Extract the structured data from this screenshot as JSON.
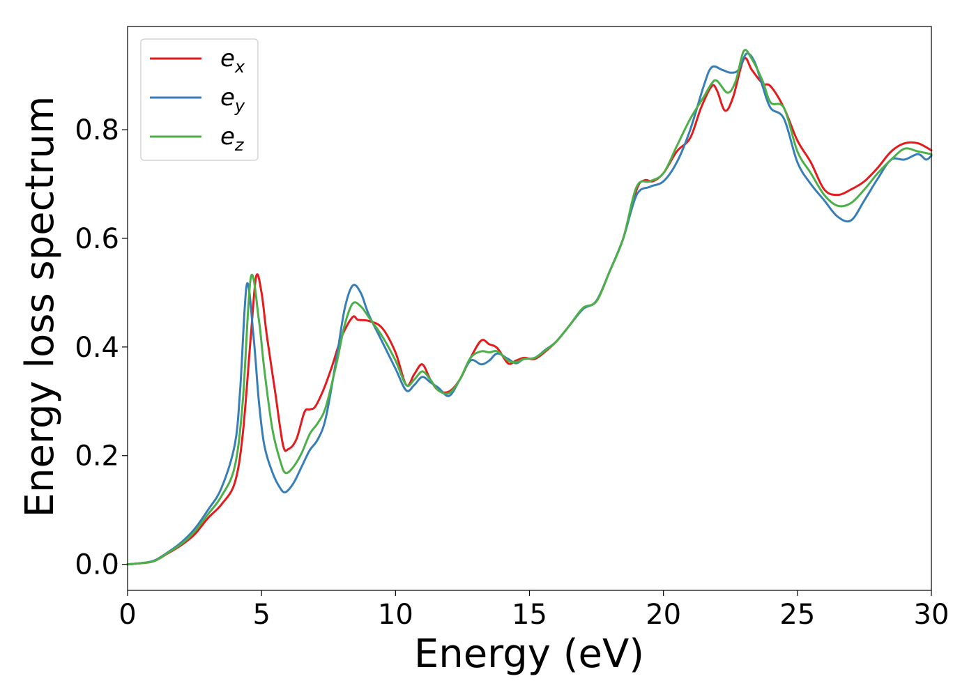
{
  "chart_data": {
    "type": "line",
    "xlabel": "Energy (eV)",
    "ylabel": "Energy loss spectrum",
    "xlim": [
      0,
      30
    ],
    "ylim": [
      -0.048,
      0.99
    ],
    "xticks": [
      0,
      5,
      10,
      15,
      20,
      25,
      30
    ],
    "xtick_labels": [
      "0",
      "5",
      "10",
      "15",
      "20",
      "25",
      "30"
    ],
    "yticks": [
      0.0,
      0.2,
      0.4,
      0.6,
      0.8
    ],
    "ytick_labels": [
      "0.0",
      "0.2",
      "0.4",
      "0.6",
      "0.8"
    ],
    "grid": false,
    "legend_position": "top-left",
    "series": [
      {
        "name": "e",
        "subscript": "x",
        "color": "#e41a1c",
        "x": [
          0,
          0.5,
          1,
          1.5,
          2,
          2.5,
          3,
          3.5,
          4,
          4.3,
          4.6,
          4.8,
          5.0,
          5.2,
          5.5,
          5.8,
          6.0,
          6.3,
          6.6,
          6.8,
          7.0,
          7.3,
          7.6,
          8.0,
          8.4,
          8.6,
          9.0,
          9.5,
          10.0,
          10.4,
          10.7,
          11.0,
          11.3,
          11.6,
          12.0,
          12.4,
          12.8,
          13.2,
          13.5,
          13.8,
          14.2,
          14.5,
          14.8,
          15.2,
          15.6,
          16.0,
          16.5,
          17.0,
          17.5,
          18.0,
          18.5,
          19.0,
          19.3,
          19.6,
          20.0,
          20.5,
          21.0,
          21.4,
          21.8,
          22.0,
          22.3,
          22.6,
          23.0,
          23.3,
          23.7,
          24.0,
          24.5,
          25.0,
          25.5,
          26.0,
          26.5,
          27.0,
          27.5,
          28.0,
          28.5,
          29.0,
          29.5,
          30.0
        ],
        "values": [
          0.0,
          0.002,
          0.006,
          0.02,
          0.035,
          0.055,
          0.085,
          0.11,
          0.15,
          0.24,
          0.42,
          0.53,
          0.5,
          0.42,
          0.32,
          0.22,
          0.212,
          0.23,
          0.28,
          0.285,
          0.29,
          0.32,
          0.36,
          0.42,
          0.455,
          0.45,
          0.448,
          0.435,
          0.39,
          0.33,
          0.35,
          0.368,
          0.34,
          0.32,
          0.318,
          0.34,
          0.38,
          0.412,
          0.405,
          0.398,
          0.37,
          0.375,
          0.38,
          0.378,
          0.392,
          0.41,
          0.44,
          0.47,
          0.485,
          0.54,
          0.6,
          0.69,
          0.707,
          0.705,
          0.72,
          0.76,
          0.785,
          0.84,
          0.88,
          0.872,
          0.835,
          0.86,
          0.93,
          0.91,
          0.885,
          0.88,
          0.84,
          0.78,
          0.74,
          0.69,
          0.68,
          0.69,
          0.705,
          0.73,
          0.76,
          0.775,
          0.775,
          0.762
        ]
      },
      {
        "name": "e",
        "subscript": "y",
        "color": "#377eb8",
        "x": [
          0,
          0.5,
          1,
          1.5,
          2,
          2.5,
          3,
          3.5,
          4,
          4.2,
          4.45,
          4.7,
          4.9,
          5.1,
          5.4,
          5.7,
          5.9,
          6.2,
          6.5,
          6.8,
          7.1,
          7.4,
          7.8,
          8.1,
          8.4,
          8.7,
          9.0,
          9.5,
          10.0,
          10.4,
          10.7,
          11.0,
          11.3,
          11.6,
          12.0,
          12.4,
          12.8,
          13.2,
          13.5,
          13.8,
          14.2,
          14.5,
          14.8,
          15.2,
          15.6,
          16.0,
          16.5,
          17.0,
          17.5,
          18.0,
          18.5,
          19.0,
          19.5,
          20.0,
          20.5,
          21.0,
          21.5,
          21.8,
          22.2,
          22.5,
          22.8,
          23.1,
          23.4,
          23.7,
          24.0,
          24.5,
          25.0,
          25.5,
          26.0,
          26.5,
          27.0,
          27.5,
          28.0,
          28.5,
          29.0,
          29.5,
          29.8,
          30.0
        ],
        "values": [
          0.0,
          0.002,
          0.007,
          0.022,
          0.04,
          0.065,
          0.1,
          0.14,
          0.22,
          0.32,
          0.515,
          0.42,
          0.3,
          0.22,
          0.17,
          0.14,
          0.133,
          0.15,
          0.18,
          0.21,
          0.23,
          0.27,
          0.38,
          0.47,
          0.513,
          0.5,
          0.46,
          0.41,
          0.36,
          0.32,
          0.33,
          0.345,
          0.335,
          0.325,
          0.31,
          0.34,
          0.375,
          0.368,
          0.375,
          0.388,
          0.378,
          0.37,
          0.378,
          0.38,
          0.395,
          0.41,
          0.44,
          0.47,
          0.485,
          0.54,
          0.6,
          0.68,
          0.695,
          0.705,
          0.74,
          0.8,
          0.88,
          0.915,
          0.91,
          0.905,
          0.91,
          0.94,
          0.925,
          0.88,
          0.84,
          0.82,
          0.74,
          0.7,
          0.67,
          0.64,
          0.633,
          0.67,
          0.71,
          0.745,
          0.745,
          0.755,
          0.745,
          0.752
        ]
      },
      {
        "name": "e",
        "subscript": "z",
        "color": "#4daf4a",
        "x": [
          0,
          0.5,
          1,
          1.5,
          2,
          2.5,
          3,
          3.5,
          4,
          4.3,
          4.6,
          4.9,
          5.1,
          5.4,
          5.7,
          5.9,
          6.2,
          6.5,
          6.8,
          7.1,
          7.4,
          7.8,
          8.1,
          8.4,
          8.7,
          9.0,
          9.5,
          10.0,
          10.4,
          10.7,
          11.0,
          11.3,
          11.6,
          12.0,
          12.4,
          12.8,
          13.2,
          13.5,
          13.8,
          14.2,
          14.5,
          14.8,
          15.2,
          15.6,
          16.0,
          16.5,
          17.0,
          17.5,
          18.0,
          18.5,
          19.0,
          19.5,
          20.0,
          20.5,
          21.0,
          21.5,
          21.8,
          22.0,
          22.4,
          22.7,
          23.0,
          23.3,
          23.7,
          24.0,
          24.5,
          25.0,
          25.5,
          26.0,
          26.5,
          27.0,
          27.5,
          28.0,
          28.5,
          29.0,
          29.5,
          30.0
        ],
        "values": [
          0.0,
          0.002,
          0.006,
          0.021,
          0.037,
          0.06,
          0.092,
          0.125,
          0.18,
          0.3,
          0.528,
          0.45,
          0.36,
          0.25,
          0.19,
          0.168,
          0.18,
          0.205,
          0.24,
          0.26,
          0.29,
          0.37,
          0.44,
          0.48,
          0.475,
          0.455,
          0.42,
          0.375,
          0.33,
          0.34,
          0.355,
          0.34,
          0.32,
          0.315,
          0.34,
          0.38,
          0.392,
          0.39,
          0.392,
          0.375,
          0.372,
          0.378,
          0.38,
          0.394,
          0.41,
          0.44,
          0.472,
          0.484,
          0.54,
          0.6,
          0.695,
          0.705,
          0.72,
          0.77,
          0.82,
          0.86,
          0.885,
          0.89,
          0.868,
          0.89,
          0.945,
          0.93,
          0.89,
          0.85,
          0.84,
          0.76,
          0.72,
          0.68,
          0.66,
          0.665,
          0.69,
          0.72,
          0.745,
          0.765,
          0.76,
          0.755
        ]
      }
    ]
  }
}
